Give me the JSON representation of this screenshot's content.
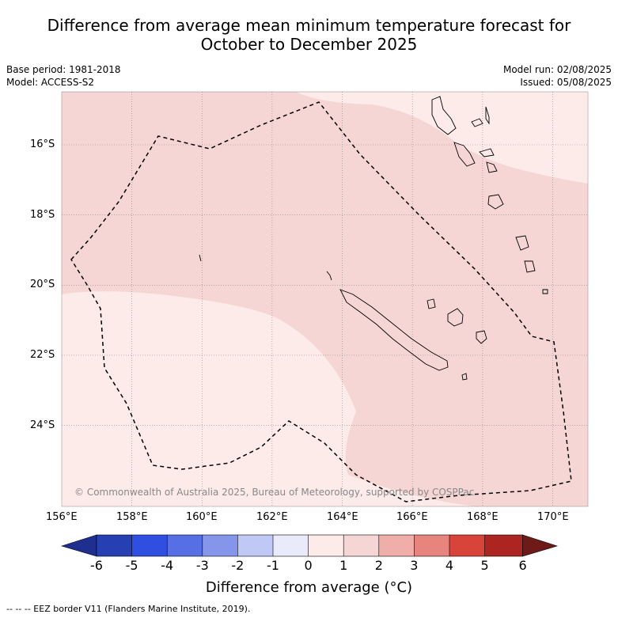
{
  "title_line1": "Difference from average mean minimum temperature forecast for",
  "title_line2": "October to December 2025",
  "meta": {
    "base_period": "Base period: 1981-2018",
    "model": "Model: ACCESS-S2",
    "model_run": "Model run: 02/08/2025",
    "issued": "Issued: 05/08/2025"
  },
  "map": {
    "lon_labels": [
      "156°E",
      "158°E",
      "160°E",
      "162°E",
      "164°E",
      "166°E",
      "168°E",
      "170°E"
    ],
    "lat_labels": [
      "16°S",
      "18°S",
      "20°S",
      "22°S",
      "24°S"
    ],
    "copyright": "© Commonwealth of Australia 2025, Bureau of Meteorology, supported by COSPPac",
    "colors": {
      "band_0_1": "#fcebe9",
      "band_1_2": "#f5d6d4",
      "coast": "#000000"
    }
  },
  "colorbar": {
    "ticks": [
      "-6",
      "-5",
      "-4",
      "-3",
      "-2",
      "-1",
      "0",
      "1",
      "2",
      "3",
      "4",
      "5",
      "6"
    ],
    "colors": [
      "#1f2f8f",
      "#263fb2",
      "#2f4fe0",
      "#566fe4",
      "#8596ea",
      "#c0c8f5",
      "#e9ebfa",
      "#fcebe9",
      "#f5d6d4",
      "#f0aeaa",
      "#e6847d",
      "#d9443a",
      "#ac2520",
      "#6e1b18"
    ],
    "title": "Difference from average (°C)"
  },
  "footnote": "--  --  -- EEZ border V11 (Flanders Marine Institute, 2019)."
}
